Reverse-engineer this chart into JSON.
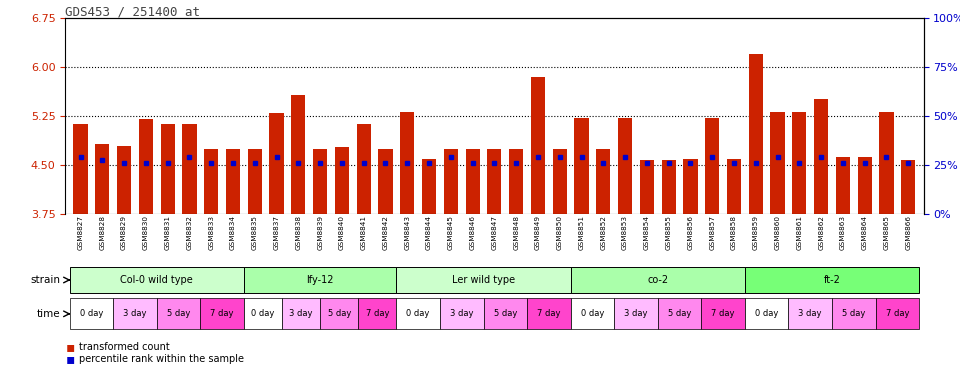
{
  "title": "GDS453 / 251400_at",
  "samples": [
    "GSM8827",
    "GSM8828",
    "GSM8829",
    "GSM8830",
    "GSM8831",
    "GSM8832",
    "GSM8833",
    "GSM8834",
    "GSM8835",
    "GSM8837",
    "GSM8838",
    "GSM8839",
    "GSM8840",
    "GSM8841",
    "GSM8842",
    "GSM8843",
    "GSM8844",
    "GSM8845",
    "GSM8846",
    "GSM8847",
    "GSM8848",
    "GSM8849",
    "GSM8850",
    "GSM8851",
    "GSM8852",
    "GSM8853",
    "GSM8854",
    "GSM8855",
    "GSM8856",
    "GSM8857",
    "GSM8858",
    "GSM8859",
    "GSM8860",
    "GSM8861",
    "GSM8862",
    "GSM8863",
    "GSM8864",
    "GSM8865",
    "GSM8866"
  ],
  "bar_values": [
    5.13,
    4.82,
    4.8,
    5.2,
    5.13,
    5.13,
    4.75,
    4.75,
    4.75,
    5.3,
    5.58,
    4.75,
    4.78,
    5.13,
    4.75,
    5.32,
    4.6,
    4.75,
    4.75,
    4.75,
    4.75,
    5.85,
    4.75,
    5.23,
    4.75,
    5.23,
    4.58,
    4.58,
    4.6,
    5.23,
    4.6,
    6.2,
    5.32,
    5.32,
    5.52,
    4.62,
    4.62,
    5.32,
    4.58
  ],
  "percentile_values": [
    4.62,
    4.58,
    4.53,
    4.53,
    4.53,
    4.62,
    4.53,
    4.53,
    4.53,
    4.62,
    4.53,
    4.53,
    4.53,
    4.53,
    4.53,
    4.53,
    4.53,
    4.62,
    4.53,
    4.53,
    4.53,
    4.62,
    4.62,
    4.62,
    4.53,
    4.62,
    4.53,
    4.53,
    4.53,
    4.62,
    4.53,
    4.53,
    4.62,
    4.53,
    4.62,
    4.53,
    4.53,
    4.62,
    4.53
  ],
  "strains": [
    {
      "label": "Col-0 wild type",
      "start": 0,
      "end": 8,
      "color": "#ccffcc"
    },
    {
      "label": "lfy-12",
      "start": 8,
      "end": 15,
      "color": "#aaffaa"
    },
    {
      "label": "Ler wild type",
      "start": 15,
      "end": 23,
      "color": "#ccffcc"
    },
    {
      "label": "co-2",
      "start": 23,
      "end": 31,
      "color": "#aaffaa"
    },
    {
      "label": "ft-2",
      "start": 31,
      "end": 39,
      "color": "#77ff77"
    }
  ],
  "time_labels": [
    "0 day",
    "3 day",
    "5 day",
    "7 day"
  ],
  "time_colors": [
    "#ffffff",
    "#ffbbff",
    "#ff88ee",
    "#ff44cc"
  ],
  "ylim_left": [
    3.75,
    6.75
  ],
  "yticks_left": [
    3.75,
    4.5,
    5.25,
    6.0,
    6.75
  ],
  "yticks_right": [
    0,
    25,
    50,
    75,
    100
  ],
  "bar_color": "#cc2200",
  "percentile_color": "#0000cc",
  "bg_color": "#ffffff",
  "left_tick_color": "#cc2200",
  "right_tick_color": "#0000cc"
}
